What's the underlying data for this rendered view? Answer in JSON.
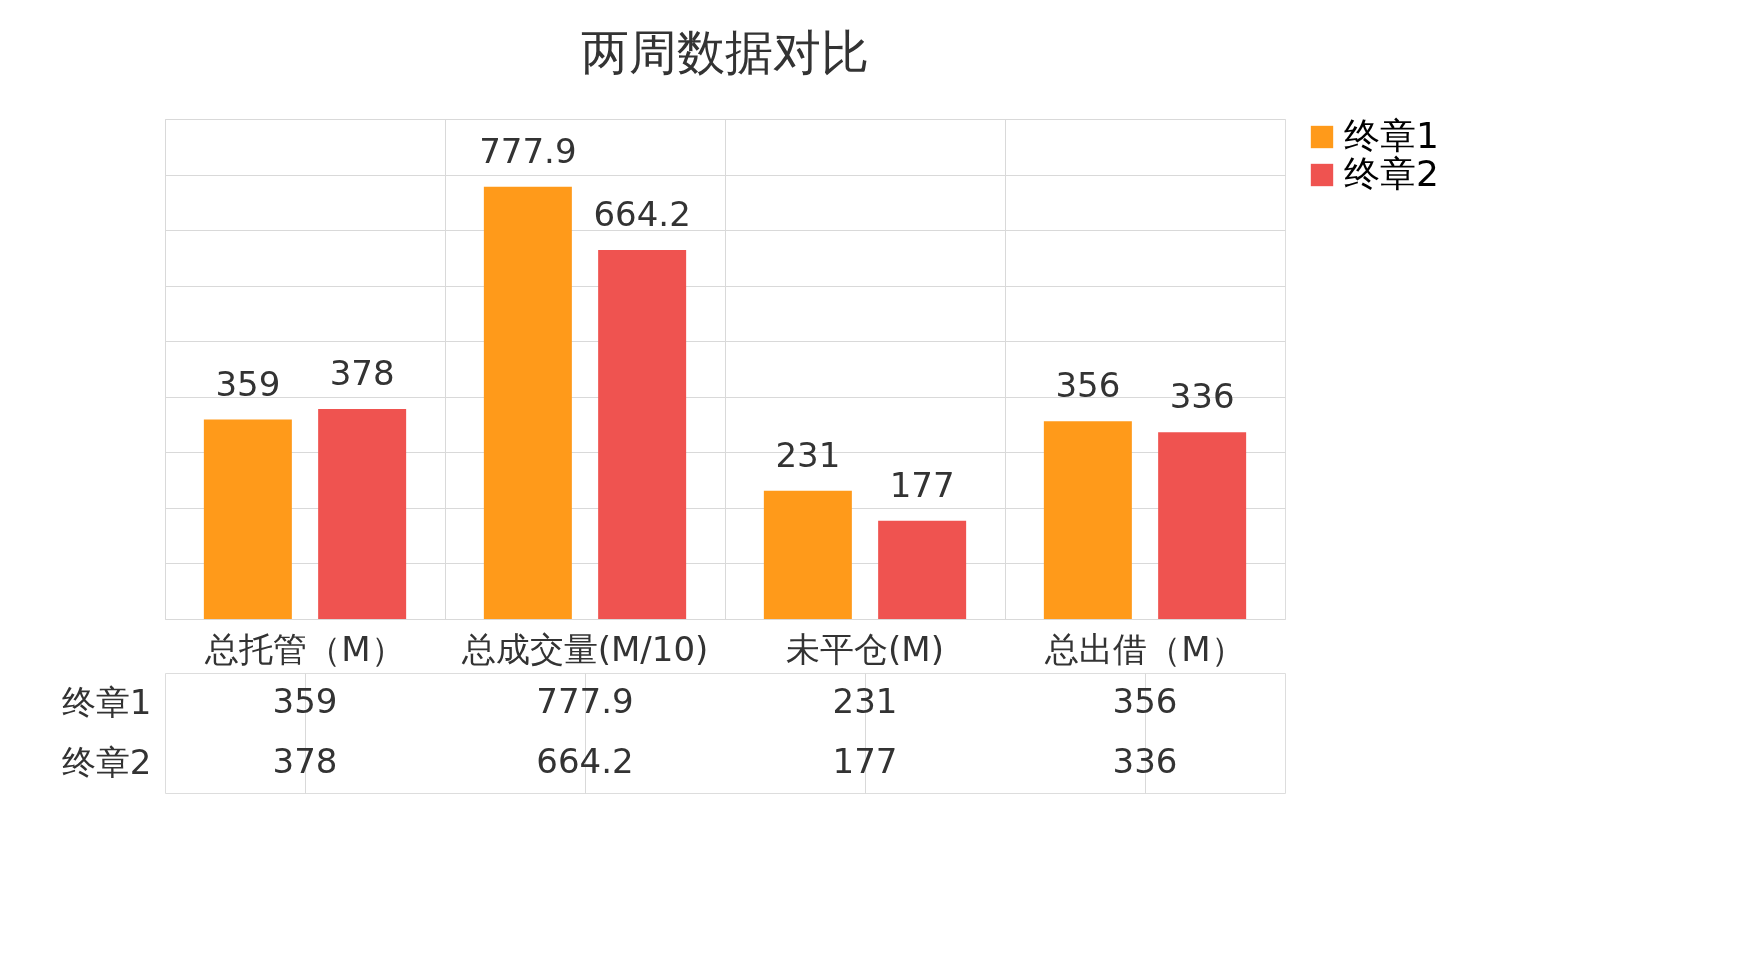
{
  "chart_data": {
    "type": "bar",
    "title": "两周数据对比",
    "categories": [
      "总托管（M）",
      "总成交量(M/10)",
      "未平仓(M)",
      "总出借（M）"
    ],
    "series": [
      {
        "name": "终章1",
        "color": "#ff9a1a",
        "values": [
          359,
          777.9,
          231,
          356
        ]
      },
      {
        "name": "终章2",
        "color": "#ef5350",
        "values": [
          378,
          664.2,
          177,
          336
        ]
      }
    ],
    "ylim": [
      0,
      900
    ],
    "yticks": [
      {
        "value": 0,
        "label": null
      },
      {
        "value": 100,
        "label": null
      },
      {
        "value": 200,
        "label": null
      },
      {
        "value": 300,
        "label": null
      },
      {
        "value": 400,
        "label": null
      },
      {
        "value": 500,
        "label": null
      },
      {
        "value": 600,
        "label": null
      },
      {
        "value": 700,
        "label": null
      },
      {
        "value": 800,
        "label": null
      },
      {
        "value": 900,
        "label": null
      }
    ],
    "annotations": [
      "359",
      "777.9",
      "231",
      "356",
      "378",
      "664.2",
      "177",
      "336"
    ],
    "data_labels": true,
    "grid": true,
    "legend": "right",
    "tick_labels": "x"
  }
}
